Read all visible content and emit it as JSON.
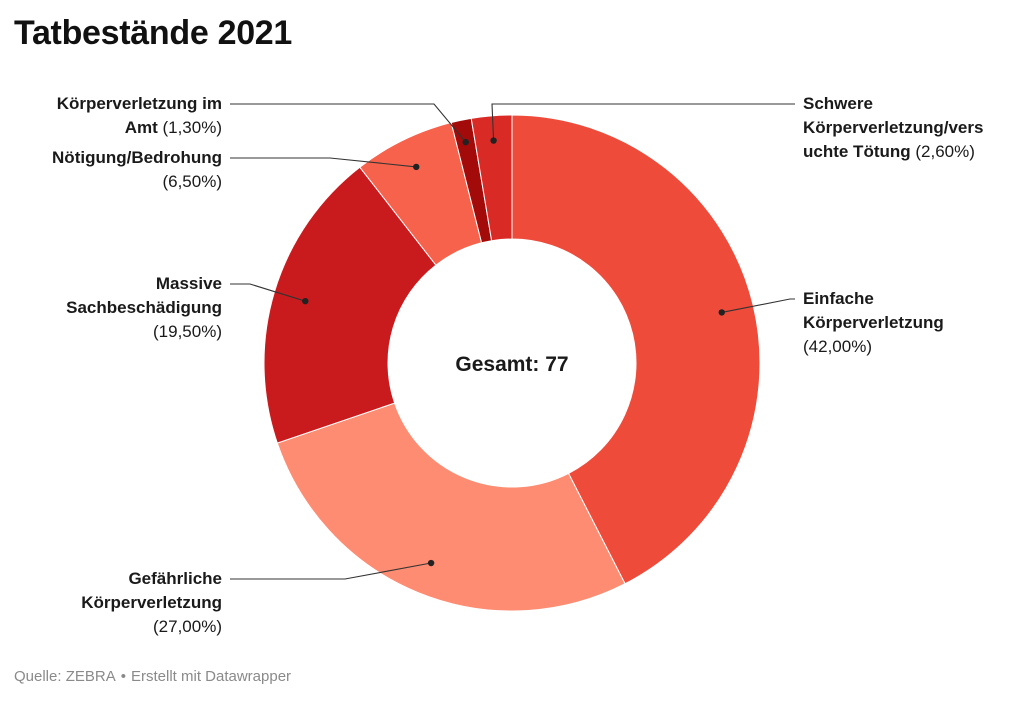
{
  "title": "Tatbestände 2021",
  "footer": {
    "source": "Quelle: ZEBRA",
    "separator": "•",
    "credit": "Erstellt mit Datawrapper"
  },
  "chart_data": {
    "type": "pie",
    "variant": "donut",
    "title": "Tatbestände 2021",
    "center_label": "Gesamt: 77",
    "start_angle_deg": 0,
    "direction": "clockwise",
    "slices": [
      {
        "name": "Einfache Körperverletzung",
        "value": 42.0,
        "label_lines": [
          "Einfache",
          "Körperverletzung"
        ],
        "value_label": "(42,00%)",
        "color": "#ee4b3b",
        "label_side": "right"
      },
      {
        "name": "Gefährliche Körperverletzung",
        "value": 27.0,
        "label_lines": [
          "Gefährliche",
          "Körperverletzung"
        ],
        "value_label": "(27,00%)",
        "color": "#fd8c72",
        "label_side": "left"
      },
      {
        "name": "Massive Sachbeschädigung",
        "value": 19.5,
        "label_lines": [
          "Massive",
          "Sachbeschädigung"
        ],
        "value_label": "(19,50%)",
        "color": "#c91b1d",
        "label_side": "left"
      },
      {
        "name": "Nötigung/Bedrohung",
        "value": 6.5,
        "label_lines": [
          "Nötigung/Bedrohung"
        ],
        "value_label": "(6,50%)",
        "color": "#f7624c",
        "label_side": "left"
      },
      {
        "name": "Körperverletzung im Amt",
        "value": 1.3,
        "label_lines": [
          "Körperverletzung im",
          "Amt"
        ],
        "value_label": "(1,30%)",
        "value_inline": true,
        "color": "#a30b0b",
        "label_side": "left"
      },
      {
        "name": "Schwere Körperverletzung/versuchte Tötung",
        "value": 2.6,
        "label_lines": [
          "Schwere",
          "Körperverletzung/vers",
          "uchte Tötung"
        ],
        "value_label": "(2,60%)",
        "value_inline": true,
        "color": "#d92a26",
        "label_side": "right"
      }
    ]
  }
}
